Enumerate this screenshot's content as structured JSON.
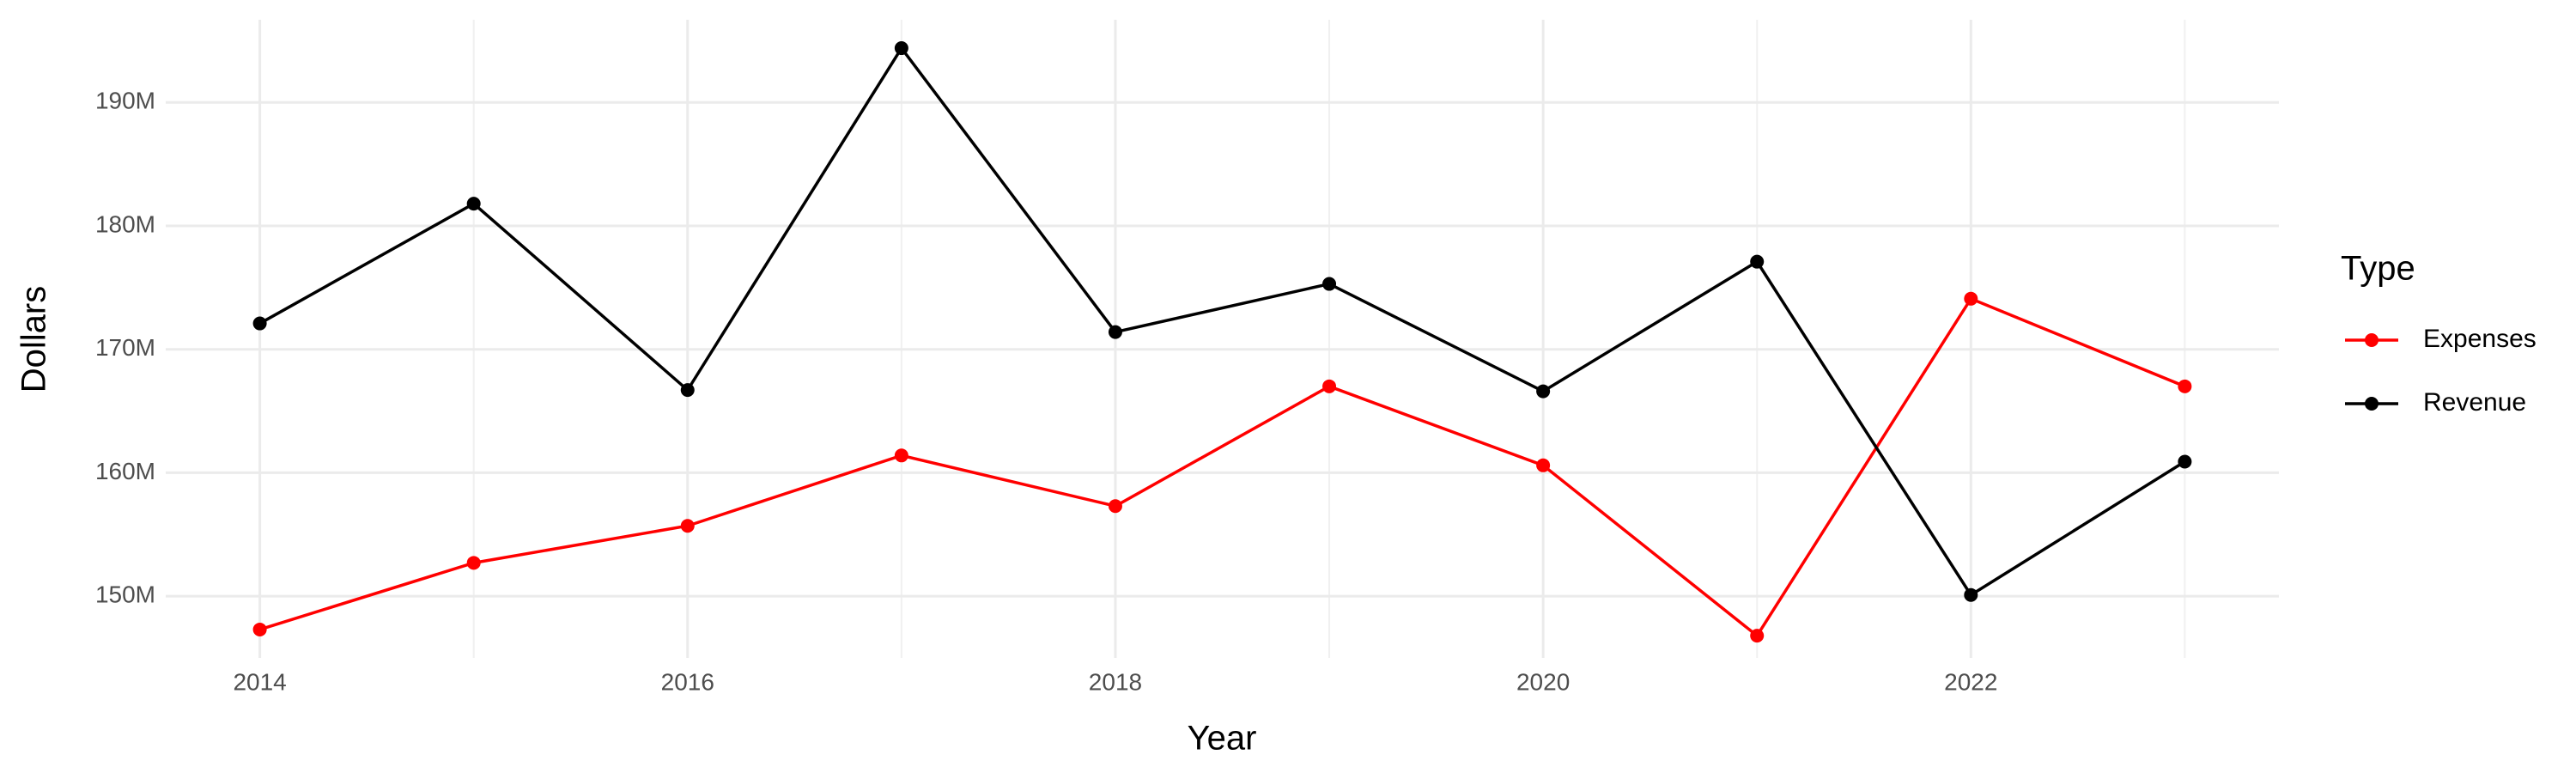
{
  "chart_data": {
    "type": "line",
    "x_label": "Year",
    "y_label": "Dollars",
    "legend_title": "Type",
    "legend": "right",
    "grid": true,
    "x": [
      2014,
      2015,
      2016,
      2017,
      2018,
      2019,
      2020,
      2021,
      2022,
      2023
    ],
    "series": [
      {
        "name": "Expenses",
        "color": "#ff0000",
        "values": [
          147300000,
          152700000,
          155700000,
          161400000,
          157300000,
          167000000,
          160600000,
          146800000,
          174100000,
          167000000
        ]
      },
      {
        "name": "Revenue",
        "color": "#000000",
        "values": [
          172100000,
          181800000,
          166700000,
          194400000,
          171400000,
          175300000,
          166600000,
          177100000,
          150100000,
          160900000
        ]
      }
    ],
    "xlim": [
      2013.56,
      2023.44
    ],
    "xticks": [
      2014,
      2016,
      2018,
      2020,
      2022
    ],
    "ylim": [
      145000000,
      196700000
    ],
    "yticks": [
      {
        "value": 150000000,
        "label": "150M"
      },
      {
        "value": 160000000,
        "label": "160M"
      },
      {
        "value": 170000000,
        "label": "170M"
      },
      {
        "value": 180000000,
        "label": "180M"
      },
      {
        "value": 190000000,
        "label": "190M"
      }
    ]
  }
}
